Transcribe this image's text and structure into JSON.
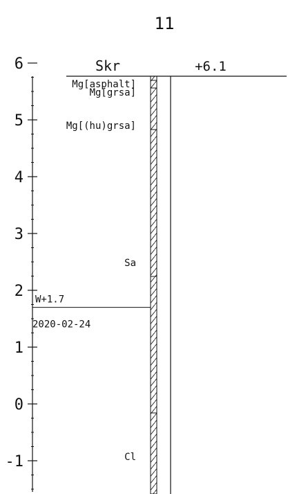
{
  "header": {
    "number": "11",
    "method": "Skr",
    "ground_level": "+6.1"
  },
  "scale": {
    "ticks": [
      {
        "label": "6",
        "value": 6
      },
      {
        "label": "5",
        "value": 5
      },
      {
        "label": "4",
        "value": 4
      },
      {
        "label": "3",
        "value": 3
      },
      {
        "label": "2",
        "value": 2
      },
      {
        "label": "1",
        "value": 1
      },
      {
        "label": "0",
        "value": 0
      },
      {
        "label": "-1",
        "value": -1
      }
    ]
  },
  "soil_layers": [
    {
      "label": "Mg[asphalt]",
      "level": 6.1
    },
    {
      "label": "Mg[grsa]",
      "level": 6.0
    },
    {
      "label": "Mg[(hu)grsa]",
      "level": 5.5
    },
    {
      "label": "Sa",
      "level": 2.0
    },
    {
      "label": "Cl",
      "level": -1.0
    }
  ],
  "groundwater": {
    "label": "W+1.7",
    "level": 1.7,
    "date": "2020-02-24"
  }
}
